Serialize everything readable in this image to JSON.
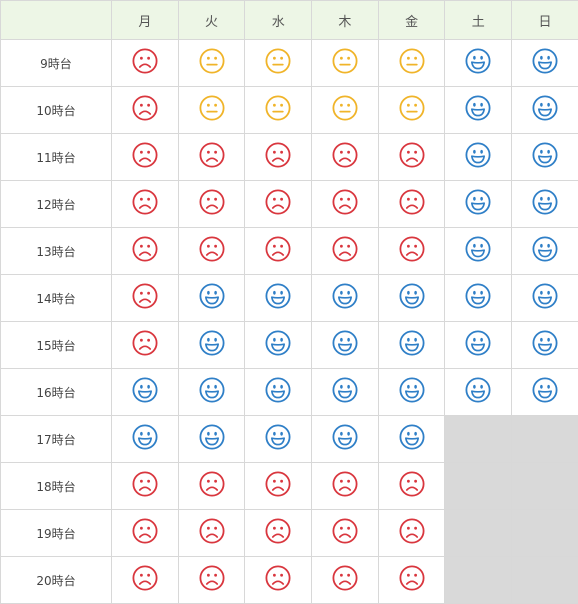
{
  "colors": {
    "happy": "#2f7fc7",
    "neutral": "#f0b429",
    "sad": "#d9363e",
    "header_bg": "#edf6e6",
    "closed_bg": "#d9d9d9"
  },
  "days": [
    "月",
    "火",
    "水",
    "木",
    "金",
    "土",
    "日"
  ],
  "rows": [
    {
      "time": "9時台",
      "slots": [
        "sad-icon",
        "neutral-icon",
        "neutral-icon",
        "neutral-icon",
        "neutral-icon",
        "happy-icon",
        "happy-icon"
      ]
    },
    {
      "time": "10時台",
      "slots": [
        "sad-icon",
        "neutral-icon",
        "neutral-icon",
        "neutral-icon",
        "neutral-icon",
        "happy-icon",
        "happy-icon"
      ]
    },
    {
      "time": "11時台",
      "slots": [
        "sad-icon",
        "sad-icon",
        "sad-icon",
        "sad-icon",
        "sad-icon",
        "happy-icon",
        "happy-icon"
      ]
    },
    {
      "time": "12時台",
      "slots": [
        "sad-icon",
        "sad-icon",
        "sad-icon",
        "sad-icon",
        "sad-icon",
        "happy-icon",
        "happy-icon"
      ]
    },
    {
      "time": "13時台",
      "slots": [
        "sad-icon",
        "sad-icon",
        "sad-icon",
        "sad-icon",
        "sad-icon",
        "happy-icon",
        "happy-icon"
      ]
    },
    {
      "time": "14時台",
      "slots": [
        "sad-icon",
        "happy-icon",
        "happy-icon",
        "happy-icon",
        "happy-icon",
        "happy-icon",
        "happy-icon"
      ]
    },
    {
      "time": "15時台",
      "slots": [
        "sad-icon",
        "happy-icon",
        "happy-icon",
        "happy-icon",
        "happy-icon",
        "happy-icon",
        "happy-icon"
      ]
    },
    {
      "time": "16時台",
      "slots": [
        "happy-icon",
        "happy-icon",
        "happy-icon",
        "happy-icon",
        "happy-icon",
        "happy-icon",
        "happy-icon"
      ]
    },
    {
      "time": "17時台",
      "slots": [
        "happy-icon",
        "happy-icon",
        "happy-icon",
        "happy-icon",
        "happy-icon",
        "closed",
        "closed"
      ]
    },
    {
      "time": "18時台",
      "slots": [
        "sad-icon",
        "sad-icon",
        "sad-icon",
        "sad-icon",
        "sad-icon",
        "closed",
        "closed"
      ]
    },
    {
      "time": "19時台",
      "slots": [
        "sad-icon",
        "sad-icon",
        "sad-icon",
        "sad-icon",
        "sad-icon",
        "closed",
        "closed"
      ]
    },
    {
      "time": "20時台",
      "slots": [
        "sad-icon",
        "sad-icon",
        "sad-icon",
        "sad-icon",
        "sad-icon",
        "closed",
        "closed"
      ]
    }
  ]
}
